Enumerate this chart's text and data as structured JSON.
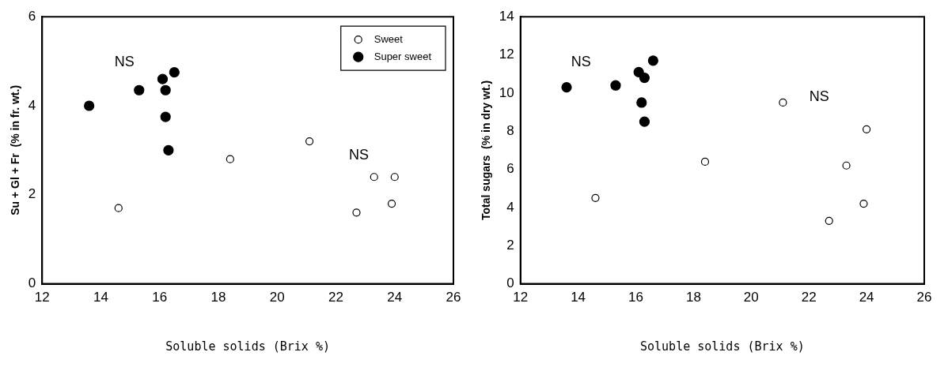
{
  "chart_data": [
    {
      "type": "scatter",
      "xlabel": "Soluble solids (Brix %)",
      "ylabel": "Su + Gl + Fr  (% in fr. wt.)",
      "xlim": [
        12,
        26
      ],
      "xticks": [
        12,
        14,
        16,
        18,
        20,
        22,
        24,
        26
      ],
      "ylim": [
        0,
        6
      ],
      "yticks": [
        0,
        2,
        4,
        6
      ],
      "grid": false,
      "legend": "top right",
      "marker": "circle",
      "annotations": [
        "NS",
        "NS"
      ],
      "series": [
        {
          "name": "Sweet",
          "color": "#ffffff",
          "x": [
            14.6,
            18.4,
            21.1,
            22.7,
            23.3,
            23.9,
            24.0
          ],
          "values": [
            1.7,
            2.8,
            3.2,
            1.6,
            2.4,
            1.8,
            2.4
          ]
        },
        {
          "name": "Super sweet",
          "color": "#000000",
          "x": [
            13.6,
            15.3,
            16.1,
            16.5,
            16.2,
            16.2,
            16.3
          ],
          "values": [
            4.0,
            4.35,
            4.6,
            4.75,
            4.35,
            3.75,
            3.0
          ]
        }
      ]
    },
    {
      "type": "scatter",
      "xlabel": "Soluble solids (Brix %)",
      "ylabel": "Total sugars  (% in dry wt.)",
      "xlim": [
        12,
        26
      ],
      "xticks": [
        12,
        14,
        16,
        18,
        20,
        22,
        24,
        26
      ],
      "ylim": [
        0,
        14
      ],
      "yticks": [
        0,
        2,
        4,
        6,
        8,
        10,
        12,
        14
      ],
      "grid": false,
      "marker": "circle",
      "annotations": [
        "NS",
        "NS"
      ],
      "series": [
        {
          "color": "#ffffff",
          "x": [
            14.6,
            18.4,
            21.1,
            22.7,
            23.3,
            23.9,
            24.0
          ],
          "values": [
            4.5,
            6.4,
            9.5,
            3.3,
            6.2,
            4.2,
            8.1
          ]
        },
        {
          "color": "#000000",
          "x": [
            13.6,
            15.3,
            16.1,
            16.3,
            16.6,
            16.2,
            16.3
          ],
          "values": [
            10.3,
            10.4,
            11.1,
            10.8,
            11.7,
            9.5,
            8.5
          ]
        }
      ]
    }
  ]
}
